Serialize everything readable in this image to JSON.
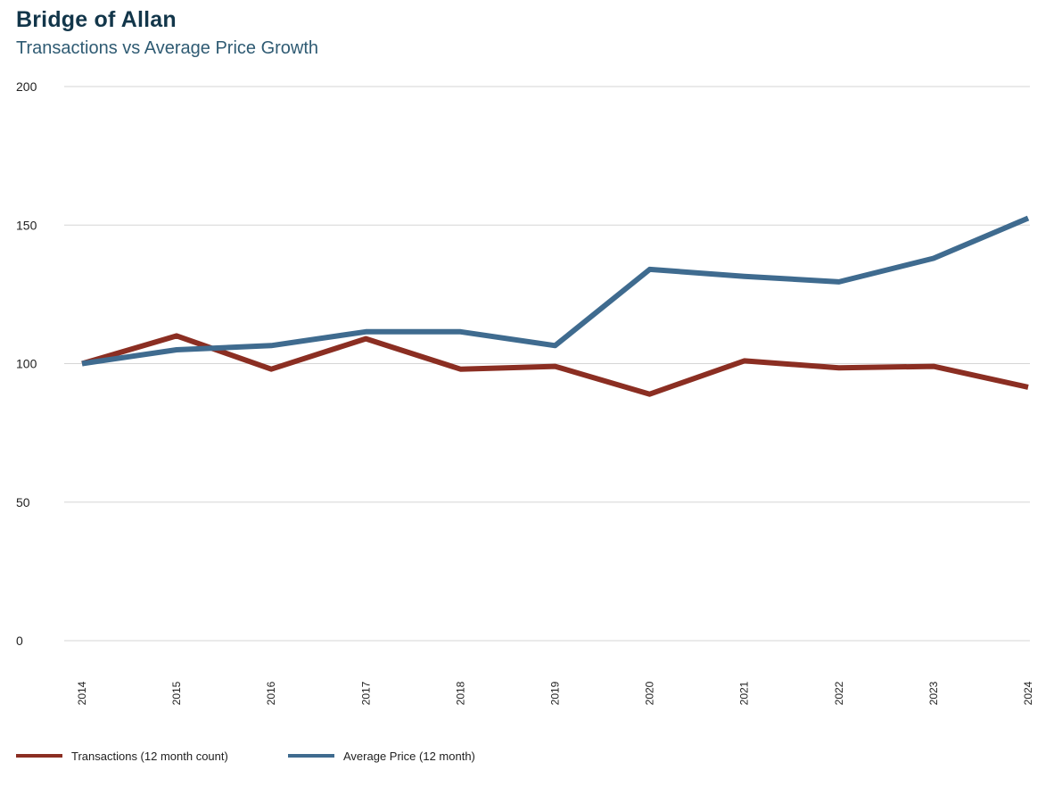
{
  "chart_data": {
    "type": "line",
    "title": "Bridge of Allan",
    "subtitle": "Transactions vs Average Price Growth",
    "xlabel": "",
    "ylabel": "",
    "ylim": [
      0,
      200
    ],
    "yticks": [
      0,
      50,
      100,
      150,
      200
    ],
    "grid": true,
    "legend_position": "bottom-left",
    "x": [
      "2014",
      "2015",
      "2016",
      "2017",
      "2018",
      "2019",
      "2020",
      "2021",
      "2022",
      "2023",
      "2024"
    ],
    "series": [
      {
        "name": "Transactions (12 month count)",
        "color": "#8b2e22",
        "values": [
          100,
          110,
          98,
          109,
          98,
          99,
          89,
          101,
          98.5,
          99,
          91.5
        ]
      },
      {
        "name": "Average Price (12 month)",
        "color": "#3f6b8f",
        "values": [
          100,
          105,
          106.5,
          111.5,
          111.5,
          106.5,
          134,
          131.5,
          129.5,
          138,
          152.5
        ]
      }
    ]
  }
}
